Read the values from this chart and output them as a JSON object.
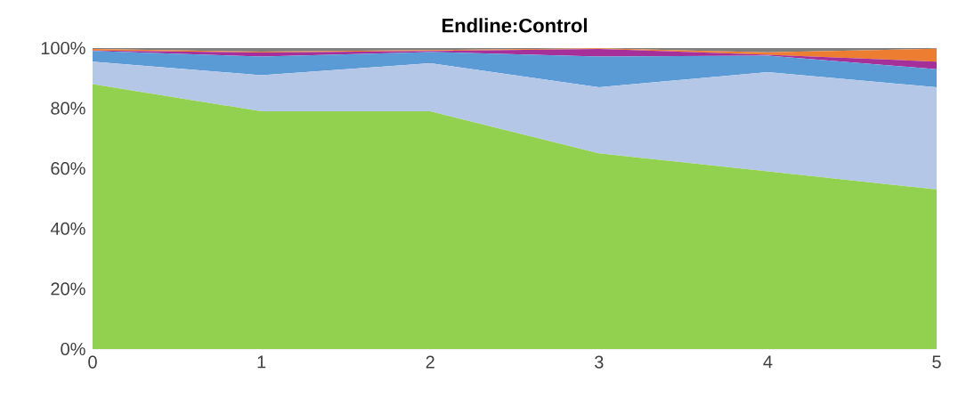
{
  "chart_data": {
    "type": "area",
    "stacked": true,
    "title": "Endline:Control",
    "x": [
      0,
      1,
      2,
      3,
      4,
      5
    ],
    "xlim": [
      0,
      5
    ],
    "xticks": [
      0,
      1,
      2,
      3,
      4,
      5
    ],
    "ylim": [
      0,
      100
    ],
    "yticks": [
      {
        "value": 0,
        "label": "0%"
      },
      {
        "value": 20,
        "label": "20%"
      },
      {
        "value": 40,
        "label": "40%"
      },
      {
        "value": 60,
        "label": "60%"
      },
      {
        "value": 80,
        "label": "80%"
      },
      {
        "value": 100,
        "label": "100%"
      }
    ],
    "series": [
      {
        "color": "#92d050",
        "values": [
          88,
          79,
          79,
          65,
          59,
          53
        ]
      },
      {
        "color": "#b4c7e7",
        "values": [
          7.5,
          12,
          16,
          22,
          33,
          34
        ]
      },
      {
        "color": "#5b9bd5",
        "values": [
          3.5,
          6.2,
          3.7,
          10.2,
          5.5,
          6
        ]
      },
      {
        "color": "#a5309a",
        "values": [
          0.2,
          1.3,
          0.3,
          2.5,
          0.3,
          2.5
        ]
      },
      {
        "color": "#ed7d31",
        "values": [
          0.5,
          0.3,
          0.3,
          0.2,
          0.8,
          4.3
        ]
      },
      {
        "color": "#7f7f7f",
        "values": [
          0.3,
          1.2,
          0.7,
          0.1,
          1.4,
          0.2
        ]
      }
    ]
  }
}
